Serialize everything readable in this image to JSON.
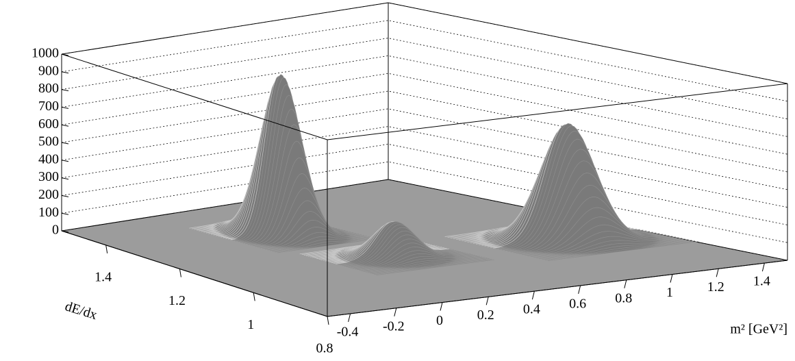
{
  "chart_data": {
    "type": "surface",
    "xlabel": "m² [GeV²]",
    "ylabel": "dE/dx",
    "xlim": [
      -0.5,
      1.5
    ],
    "xticks": [
      -0.4,
      -0.2,
      0,
      0.2,
      0.4,
      0.6,
      0.8,
      1,
      1.2,
      1.4
    ],
    "ylim": [
      0.8,
      1.52
    ],
    "yticks": [
      0.8,
      1,
      1.2,
      1.4
    ],
    "zlim": [
      0,
      1000
    ],
    "zticks": [
      0,
      100,
      200,
      300,
      400,
      500,
      600,
      700,
      800,
      900,
      1000
    ],
    "peaks": [
      {
        "x": 0.3,
        "y": 1.32,
        "z": 900,
        "sigma_x": 0.075,
        "sigma_y": 0.035
      },
      {
        "x": 0.38,
        "y": 1.1,
        "z": 200,
        "sigma_x": 0.08,
        "sigma_y": 0.03
      },
      {
        "x": 1.16,
        "y": 1.07,
        "z": 655,
        "sigma_x": 0.1,
        "sigma_y": 0.035
      }
    ],
    "color": "#7a7a7a",
    "grid": true
  }
}
